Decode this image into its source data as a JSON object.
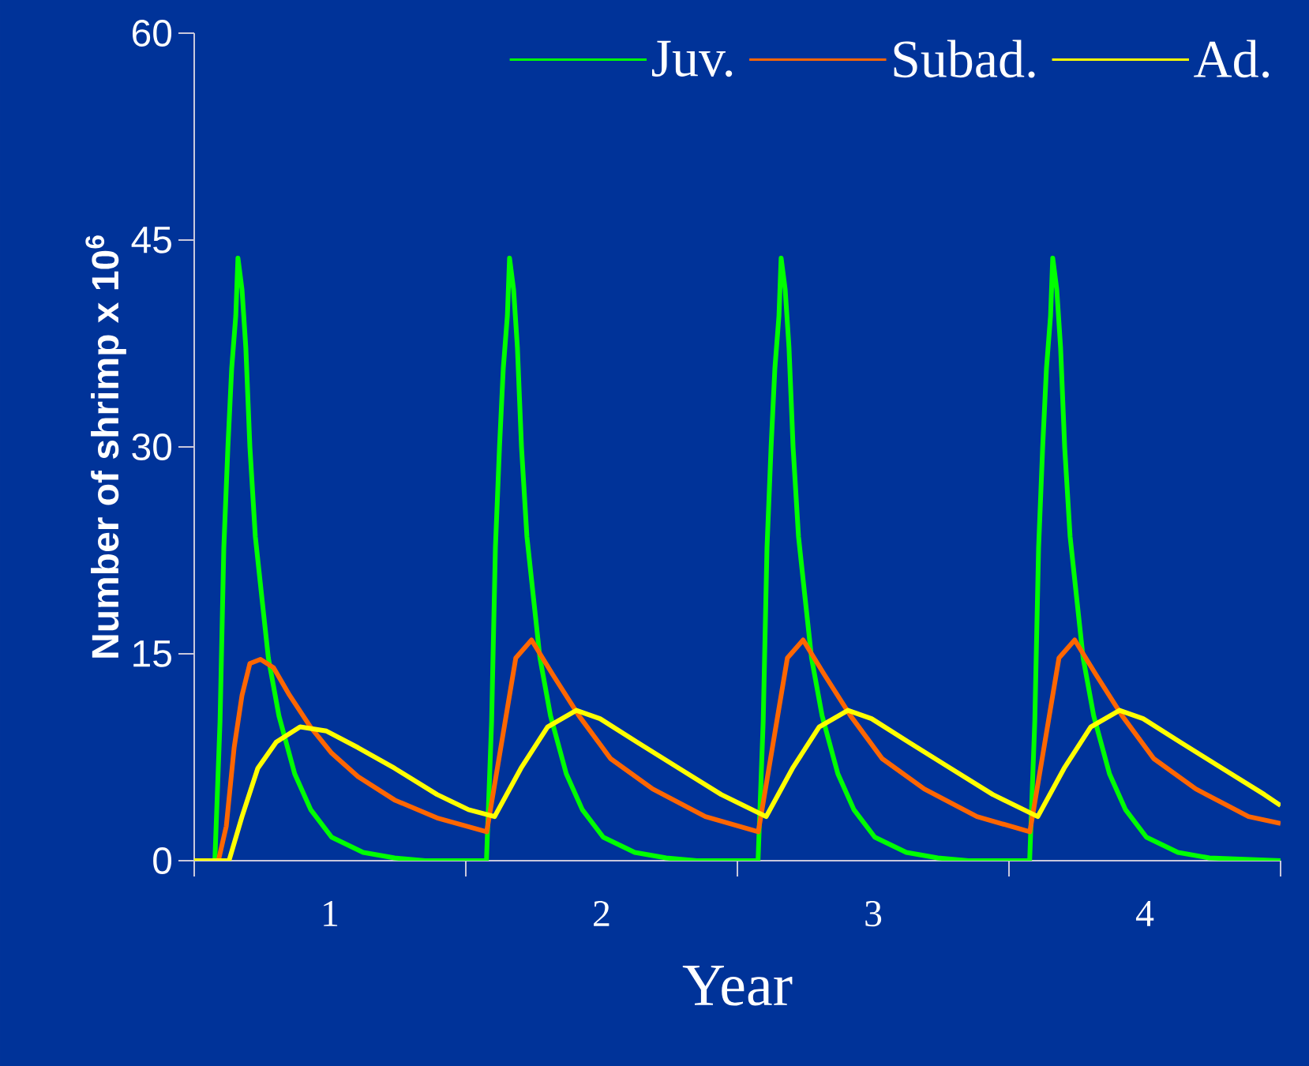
{
  "chart_data": {
    "type": "line",
    "xlabel": "Year",
    "ylabel": "Number of shrimp x 10$^{6}$",
    "xlim": [
      0,
      4
    ],
    "ylim": [
      0,
      60
    ],
    "xticks": [
      {
        "value": 0,
        "label": null
      },
      {
        "value": 0.5,
        "label": "1"
      },
      {
        "value": 1,
        "label": null
      },
      {
        "value": 1.5,
        "label": "2"
      },
      {
        "value": 2,
        "label": null
      },
      {
        "value": 2.5,
        "label": "3"
      },
      {
        "value": 3,
        "label": null
      },
      {
        "value": 3.5,
        "label": "4"
      },
      {
        "value": 4,
        "label": null
      }
    ],
    "yticks": [
      0,
      15,
      30,
      45,
      60
    ],
    "legend": "top right",
    "series": [
      {
        "name": "Juv.",
        "color": "#00ff00",
        "x": [
          0,
          0.076,
          0.095,
          0.109,
          0.124,
          0.138,
          0.153,
          0.161,
          0.176,
          0.19,
          0.205,
          0.225,
          0.25,
          0.273,
          0.312,
          0.37,
          0.429,
          0.506,
          0.622,
          0.738,
          0.85,
          1.076,
          1.095,
          1.109,
          1.124,
          1.138,
          1.153,
          1.161,
          1.176,
          1.19,
          1.205,
          1.225,
          1.25,
          1.273,
          1.312,
          1.37,
          1.429,
          1.506,
          1.622,
          1.738,
          1.85,
          2.076,
          2.095,
          2.109,
          2.124,
          2.138,
          2.153,
          2.161,
          2.176,
          2.19,
          2.205,
          2.225,
          2.25,
          2.273,
          2.312,
          2.37,
          2.429,
          2.506,
          2.622,
          2.738,
          2.85,
          3.076,
          3.095,
          3.109,
          3.124,
          3.138,
          3.153,
          3.161,
          3.176,
          3.19,
          3.205,
          3.225,
          3.25,
          3.273,
          3.312,
          3.37,
          3.429,
          3.506,
          3.622,
          3.738,
          4.0
        ],
        "values": [
          0,
          0,
          10.1,
          22.7,
          30.0,
          35.7,
          39.5,
          43.7,
          41.4,
          37.2,
          30.0,
          23.5,
          18.9,
          14.7,
          10.5,
          6.3,
          3.7,
          1.7,
          0.6,
          0.2,
          0,
          0,
          10.1,
          22.7,
          30.0,
          35.7,
          39.5,
          43.7,
          41.4,
          37.2,
          30.0,
          23.5,
          18.9,
          14.7,
          10.5,
          6.3,
          3.7,
          1.7,
          0.6,
          0.2,
          0,
          0,
          10.1,
          22.7,
          30.0,
          35.7,
          39.5,
          43.7,
          41.4,
          37.2,
          30.0,
          23.5,
          18.9,
          14.7,
          10.5,
          6.3,
          3.7,
          1.7,
          0.6,
          0.2,
          0,
          0,
          10.1,
          22.7,
          30.0,
          35.7,
          39.5,
          43.7,
          41.4,
          37.2,
          30.0,
          23.5,
          18.9,
          14.7,
          10.5,
          6.3,
          3.7,
          1.7,
          0.6,
          0.2,
          0
        ]
      },
      {
        "name": "Subad.",
        "color": "#ff6600",
        "x": [
          0,
          0.089,
          0.118,
          0.147,
          0.176,
          0.205,
          0.244,
          0.292,
          0.351,
          0.428,
          0.506,
          0.603,
          0.738,
          0.894,
          1.077,
          1.145,
          1.184,
          1.242,
          1.32,
          1.417,
          1.533,
          1.688,
          1.882,
          2.077,
          2.145,
          2.184,
          2.242,
          2.32,
          2.417,
          2.533,
          2.688,
          2.882,
          3.077,
          3.145,
          3.184,
          3.242,
          3.32,
          3.417,
          3.533,
          3.688,
          3.882,
          4.0
        ],
        "values": [
          0,
          0,
          2.5,
          8.2,
          12.0,
          14.3,
          14.6,
          14.0,
          12.0,
          9.7,
          7.8,
          6.1,
          4.4,
          3.1,
          2.1,
          10.1,
          14.7,
          16.0,
          13.5,
          10.5,
          7.4,
          5.2,
          3.2,
          2.1,
          10.1,
          14.7,
          16.0,
          13.5,
          10.5,
          7.4,
          5.2,
          3.2,
          2.1,
          10.1,
          14.7,
          16.0,
          13.5,
          10.5,
          7.4,
          5.2,
          3.2,
          2.7
        ]
      },
      {
        "name": "Ad.",
        "color": "#ffff00",
        "x": [
          0,
          0.128,
          0.176,
          0.234,
          0.302,
          0.39,
          0.487,
          0.603,
          0.738,
          0.894,
          1.01,
          1.106,
          1.203,
          1.301,
          1.407,
          1.494,
          1.63,
          1.785,
          1.94,
          2.106,
          2.203,
          2.301,
          2.407,
          2.494,
          2.63,
          2.785,
          2.94,
          3.106,
          3.203,
          3.301,
          3.407,
          3.494,
          3.63,
          3.785,
          3.94,
          4.0
        ],
        "values": [
          0,
          0,
          3.2,
          6.7,
          8.6,
          9.7,
          9.4,
          8.2,
          6.7,
          4.8,
          3.7,
          3.2,
          6.7,
          9.7,
          10.9,
          10.3,
          8.6,
          6.7,
          4.8,
          3.2,
          6.7,
          9.7,
          10.9,
          10.3,
          8.6,
          6.7,
          4.8,
          3.2,
          6.7,
          9.7,
          10.9,
          10.3,
          8.6,
          6.7,
          4.8,
          4.0
        ]
      }
    ]
  }
}
